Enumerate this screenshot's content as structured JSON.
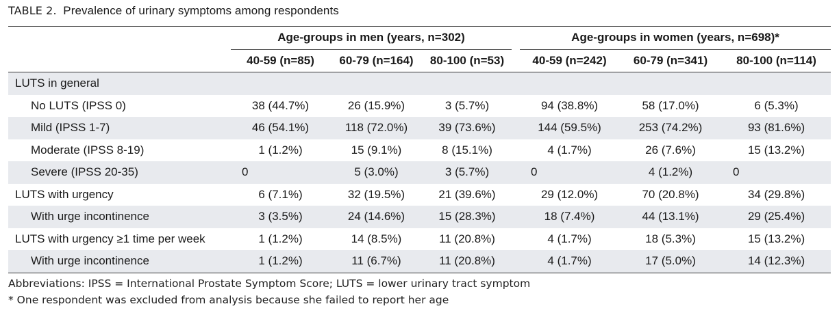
{
  "caption": {
    "label": "TABLE 2.",
    "title": "Prevalence of urinary symptoms among respondents"
  },
  "header": {
    "men_group": "Age-groups in men (years, n=302)",
    "women_group": "Age-groups in women (years, n=698)*",
    "columns": [
      "40-59 (n=85)",
      "60-79 (n=164)",
      "80-100 (n=53)",
      "40-59 (n=242)",
      "60-79 (n=341)",
      "80-100 (n=114)"
    ]
  },
  "rows": [
    {
      "label": "LUTS in general",
      "indent": false,
      "shaded": true,
      "values": [
        "",
        "",
        "",
        "",
        "",
        ""
      ]
    },
    {
      "label": "No LUTS (IPSS 0)",
      "indent": true,
      "shaded": false,
      "values": [
        "38 (44.7%)",
        "26 (15.9%)",
        "3 (5.7%)",
        "94 (38.8%)",
        "58 (17.0%)",
        "6 (5.3%)"
      ]
    },
    {
      "label": "Mild (IPSS 1-7)",
      "indent": true,
      "shaded": true,
      "values": [
        "46 (54.1%)",
        "118 (72.0%)",
        "39 (73.6%)",
        "144 (59.5%)",
        "253 (74.2%)",
        "93 (81.6%)"
      ]
    },
    {
      "label": "Moderate (IPSS 8-19)",
      "indent": true,
      "shaded": false,
      "values": [
        "1 (1.2%)",
        "15 (9.1%)",
        "8 (15.1%)",
        "4 (1.7%)",
        "26 (7.6%)",
        "15 (13.2%)"
      ]
    },
    {
      "label": "Severe (IPSS 20-35)",
      "indent": true,
      "shaded": true,
      "values": [
        "0",
        "5 (3.0%)",
        "3 (5.7%)",
        "0",
        "4 (1.2%)",
        "0"
      ]
    },
    {
      "label": "LUTS with urgency",
      "indent": false,
      "shaded": false,
      "values": [
        "6 (7.1%)",
        "32 (19.5%)",
        "21 (39.6%)",
        "29 (12.0%)",
        "70 (20.8%)",
        "34 (29.8%)"
      ]
    },
    {
      "label": "With urge incontinence",
      "indent": true,
      "shaded": true,
      "values": [
        "3 (3.5%)",
        "24 (14.6%)",
        "15 (28.3%)",
        "18 (7.4%)",
        "44 (13.1%)",
        "29 (25.4%)"
      ]
    },
    {
      "label": "LUTS with urgency ≥1 time per week",
      "indent": false,
      "shaded": false,
      "values": [
        "1 (1.2%)",
        "14 (8.5%)",
        "11 (20.8%)",
        "4 (1.7%)",
        "18 (5.3%)",
        "15 (13.2%)"
      ]
    },
    {
      "label": "With urge incontinence",
      "indent": true,
      "shaded": true,
      "values": [
        "1 (1.2%)",
        "11 (6.7%)",
        "11 (20.8%)",
        "4 (1.7%)",
        "17 (5.0%)",
        "14 (12.3%)"
      ]
    }
  ],
  "footnotes": {
    "abbreviations": "Abbreviations: IPSS = International Prostate Symptom Score; LUTS = lower urinary tract symptom",
    "asterisk": "*   One respondent was excluded from analysis because she failed to report her age"
  }
}
